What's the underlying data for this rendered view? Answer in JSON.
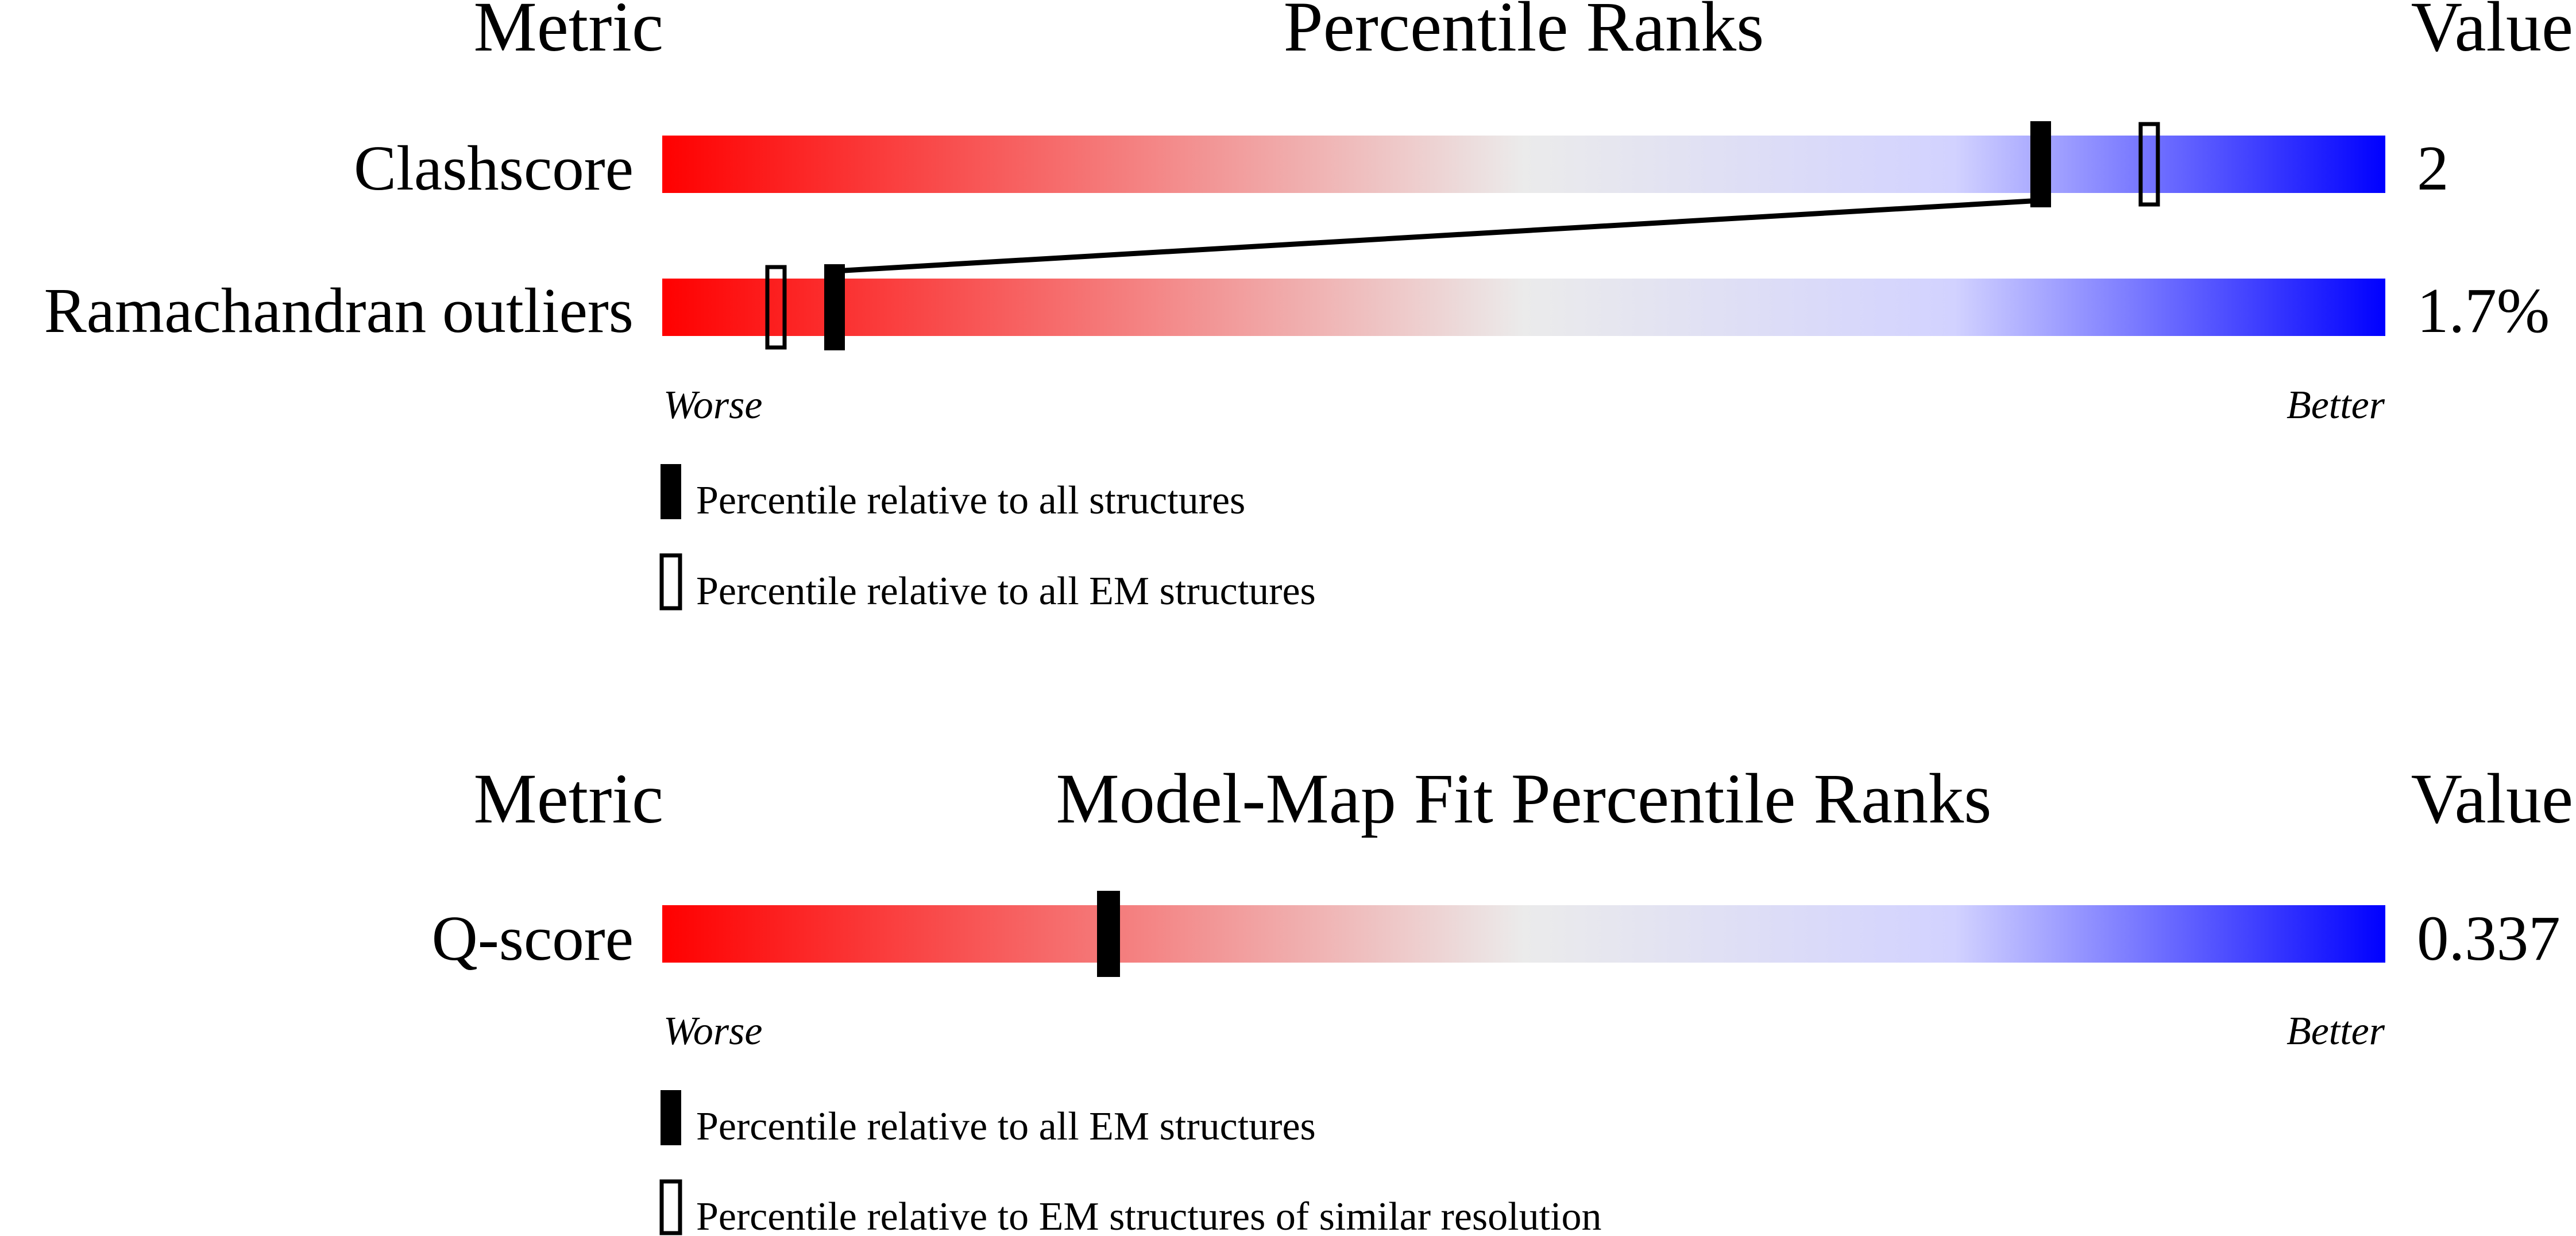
{
  "colors": {
    "worse": "#ff0000",
    "mid": "#ebebeb",
    "better": "#0000ff",
    "marker": "#000000"
  },
  "chart_data": [
    {
      "type": "percentile-rank",
      "headers": {
        "metric": "Metric",
        "title": "Percentile Ranks",
        "value": "Value"
      },
      "rows": [
        {
          "metric": "Clashscore",
          "value": "2",
          "percentile_all": 80.0,
          "percentile_em": 86.3
        },
        {
          "metric": "Ramachandran outliers",
          "value": "1.7%",
          "percentile_all": 10.0,
          "percentile_em": 6.6
        }
      ],
      "axis": {
        "worse": "Worse",
        "better": "Better",
        "range": [
          0,
          100
        ]
      },
      "legend": {
        "filled": "Percentile relative to all structures",
        "open": "Percentile relative to all EM structures"
      }
    },
    {
      "type": "percentile-rank",
      "headers": {
        "metric": "Metric",
        "title": "Model-Map Fit Percentile Ranks",
        "value": "Value"
      },
      "rows": [
        {
          "metric": "Q-score",
          "value": "0.337",
          "percentile_all": 25.9
        }
      ],
      "axis": {
        "worse": "Worse",
        "better": "Better",
        "range": [
          0,
          100
        ]
      },
      "legend": {
        "filled": "Percentile relative to all EM structures",
        "open": "Percentile relative to EM structures of similar resolution"
      }
    }
  ]
}
